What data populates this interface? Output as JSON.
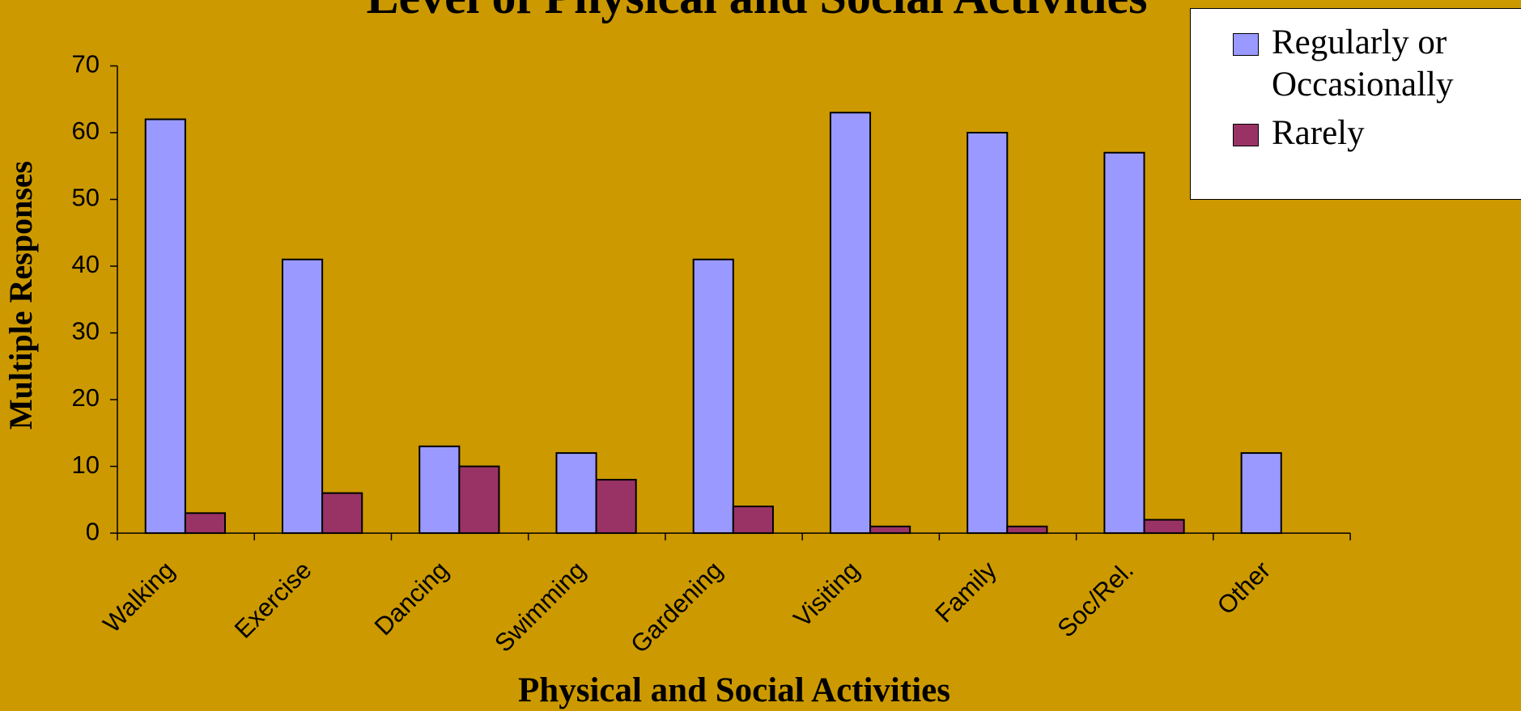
{
  "chart_data": {
    "type": "bar",
    "title": "Level of Physical and Social Activities",
    "x_label": "Physical and Social Activities",
    "y_label": "Multiple Responses",
    "categories": [
      "Walking",
      "Exercise",
      "Dancing",
      "Swimming",
      "Gardening",
      "Visiting",
      "Family",
      "Soc/Rel.",
      "Other"
    ],
    "series": [
      {
        "name": "Regularly or Occasionally",
        "color": "#9999ff",
        "values": [
          62,
          41,
          13,
          12,
          41,
          63,
          60,
          57,
          12
        ]
      },
      {
        "name": "Rarely",
        "color": "#993366",
        "values": [
          3,
          6,
          10,
          8,
          4,
          1,
          1,
          2,
          null
        ]
      }
    ],
    "ylim": [
      0,
      70
    ],
    "yticks": [
      0,
      10,
      20,
      30,
      40,
      50,
      60,
      70
    ],
    "legend": "top-right"
  }
}
